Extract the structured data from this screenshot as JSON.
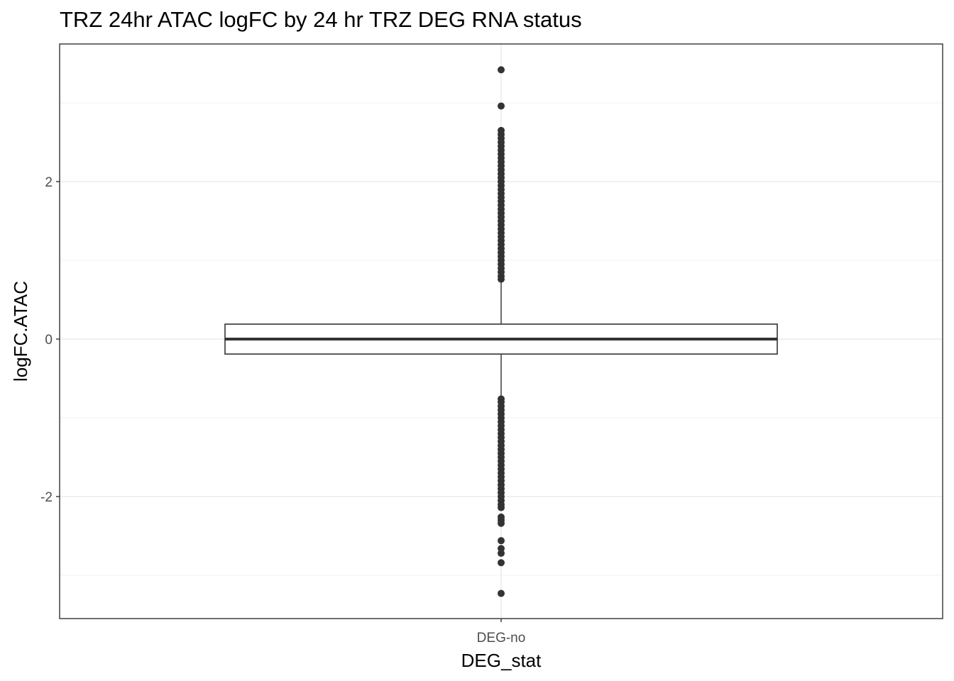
{
  "chart_data": {
    "type": "box",
    "title": "TRZ 24hr ATAC logFC by 24 hr TRZ DEG RNA status",
    "xlabel": "DEG_stat",
    "ylabel": "logFC.ATAC",
    "categories": [
      "DEG-no"
    ],
    "y_ticks": [
      -2,
      0,
      2
    ],
    "y_tick_labels": [
      "-2",
      "0",
      "2"
    ],
    "ylim": [
      -3.55,
      3.75
    ],
    "grid": true,
    "legend": "none",
    "box": {
      "category": "DEG-no",
      "q1": -0.19,
      "median": 0.0,
      "q3": 0.19,
      "whisker_low": -0.74,
      "whisker_high": 0.74
    },
    "outliers_high": [
      3.42,
      2.96,
      2.65,
      2.6,
      2.55,
      2.5,
      2.45,
      2.4,
      2.35,
      2.3,
      2.25,
      2.2,
      2.15,
      2.1,
      2.05,
      2.0,
      1.95,
      1.9,
      1.85,
      1.8,
      1.75,
      1.7,
      1.65,
      1.6,
      1.55,
      1.5,
      1.45,
      1.4,
      1.35,
      1.3,
      1.25,
      1.2,
      1.15,
      1.1,
      1.05,
      1.0,
      0.95,
      0.9,
      0.85,
      0.8,
      0.76
    ],
    "outliers_low": [
      -0.76,
      -0.8,
      -0.85,
      -0.9,
      -0.95,
      -1.0,
      -1.05,
      -1.1,
      -1.15,
      -1.2,
      -1.25,
      -1.3,
      -1.35,
      -1.4,
      -1.45,
      -1.5,
      -1.55,
      -1.6,
      -1.65,
      -1.7,
      -1.75,
      -1.8,
      -1.85,
      -1.9,
      -1.95,
      -2.0,
      -2.05,
      -2.1,
      -2.14,
      -2.26,
      -2.3,
      -2.34,
      -2.56,
      -2.66,
      -2.72,
      -2.84,
      -3.23
    ],
    "colors": {
      "points": "#333333",
      "box_stroke": "#333333",
      "grid": "#ebebeb",
      "panel_border": "#333333"
    }
  }
}
